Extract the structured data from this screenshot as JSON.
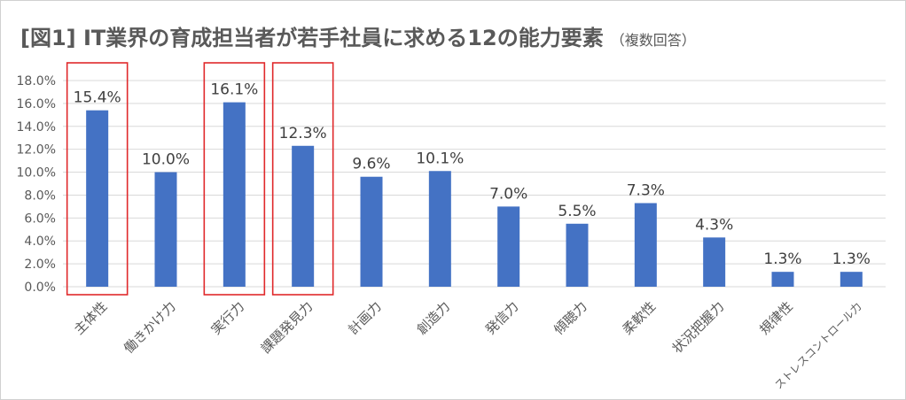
{
  "chart_data": {
    "type": "bar",
    "title": "[図1] IT業界の育成担当者が若手社員に求める12の能力要素",
    "subtitle": "（複数回答）",
    "categories": [
      "主体性",
      "働きかけ力",
      "実行力",
      "課題発見力",
      "計画力",
      "創造力",
      "発信力",
      "傾聴力",
      "柔軟性",
      "状況把握力",
      "規律性",
      "ストレスコントロール力"
    ],
    "values": [
      15.4,
      10.0,
      16.1,
      12.3,
      9.6,
      10.1,
      7.0,
      5.5,
      7.3,
      4.3,
      1.3,
      1.3
    ],
    "data_labels": [
      "15.4%",
      "10.0%",
      "16.1%",
      "12.3%",
      "9.6%",
      "10.1%",
      "7.0%",
      "5.5%",
      "7.3%",
      "4.3%",
      "1.3%",
      "1.3%"
    ],
    "y_ticks": [
      0,
      2,
      4,
      6,
      8,
      10,
      12,
      14,
      16,
      18
    ],
    "y_tick_labels": [
      "0.0%",
      "2.0%",
      "4.0%",
      "6.0%",
      "8.0%",
      "10.0%",
      "12.0%",
      "14.0%",
      "16.0%",
      "18.0%"
    ],
    "ylim": [
      0,
      18
    ],
    "xlabel": "",
    "ylabel": "",
    "grid": true,
    "legend": "none",
    "highlighted_categories": [
      "主体性",
      "実行力",
      "課題発見力"
    ],
    "colors": {
      "bar": "#4472C4",
      "highlight_box": "#E0292B",
      "grid": "#D9D9D9",
      "text": "#595959"
    }
  }
}
